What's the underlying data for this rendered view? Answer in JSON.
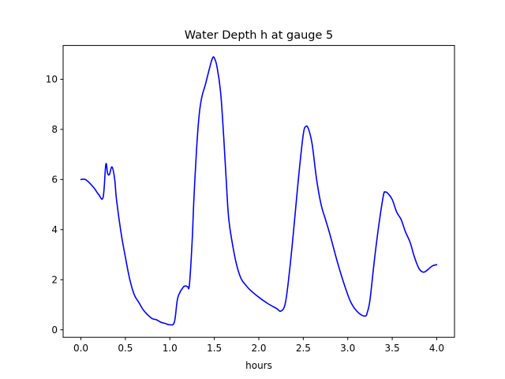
{
  "chart_data": {
    "type": "line",
    "title": "Water Depth h at gauge 5",
    "xlabel": "hours",
    "ylabel": "",
    "xlim": [
      -0.2,
      4.2
    ],
    "ylim": [
      -0.3,
      11.35
    ],
    "xticks": [
      0.0,
      0.5,
      1.0,
      1.5,
      2.0,
      2.5,
      3.0,
      3.5,
      4.0
    ],
    "xtick_labels": [
      "0.0",
      "0.5",
      "1.0",
      "1.5",
      "2.0",
      "2.5",
      "3.0",
      "3.5",
      "4.0"
    ],
    "yticks": [
      0,
      2,
      4,
      6,
      8,
      10
    ],
    "ytick_labels": [
      "0",
      "2",
      "4",
      "6",
      "8",
      "10"
    ],
    "grid": false,
    "series": [
      {
        "color": "#0000ff",
        "x": [
          0.0,
          0.05,
          0.1,
          0.15,
          0.2,
          0.25,
          0.28,
          0.3,
          0.32,
          0.35,
          0.38,
          0.4,
          0.45,
          0.5,
          0.55,
          0.6,
          0.65,
          0.7,
          0.75,
          0.8,
          0.85,
          0.9,
          0.95,
          1.0,
          1.05,
          1.08,
          1.1,
          1.15,
          1.18,
          1.2,
          1.22,
          1.25,
          1.27,
          1.3,
          1.33,
          1.36,
          1.4,
          1.45,
          1.48,
          1.5,
          1.53,
          1.57,
          1.6,
          1.63,
          1.66,
          1.7,
          1.75,
          1.8,
          1.85,
          1.9,
          2.0,
          2.1,
          2.2,
          2.25,
          2.3,
          2.35,
          2.4,
          2.45,
          2.5,
          2.53,
          2.56,
          2.6,
          2.65,
          2.7,
          2.75,
          2.8,
          2.9,
          3.0,
          3.05,
          3.1,
          3.15,
          3.2,
          3.22,
          3.25,
          3.3,
          3.35,
          3.4,
          3.42,
          3.45,
          3.5,
          3.55,
          3.6,
          3.65,
          3.7,
          3.75,
          3.8,
          3.85,
          3.9,
          3.95,
          4.0
        ],
        "y": [
          6.0,
          6.0,
          5.85,
          5.65,
          5.4,
          5.3,
          6.6,
          6.25,
          6.2,
          6.5,
          6.0,
          5.2,
          3.9,
          2.9,
          2.0,
          1.4,
          1.1,
          0.8,
          0.6,
          0.45,
          0.4,
          0.3,
          0.25,
          0.2,
          0.3,
          1.1,
          1.4,
          1.7,
          1.75,
          1.72,
          1.8,
          3.5,
          5.2,
          7.2,
          8.6,
          9.3,
          9.8,
          10.5,
          10.85,
          10.85,
          10.5,
          9.5,
          8.0,
          6.2,
          4.5,
          3.5,
          2.6,
          2.05,
          1.8,
          1.6,
          1.3,
          1.05,
          0.85,
          0.75,
          1.1,
          2.5,
          4.3,
          6.2,
          7.8,
          8.12,
          8.0,
          7.4,
          6.0,
          5.0,
          4.4,
          3.8,
          2.5,
          1.4,
          1.0,
          0.75,
          0.6,
          0.55,
          0.7,
          1.2,
          2.8,
          4.2,
          5.35,
          5.5,
          5.45,
          5.2,
          4.7,
          4.4,
          3.9,
          3.5,
          2.9,
          2.45,
          2.3,
          2.4,
          2.55,
          2.6
        ]
      }
    ]
  }
}
